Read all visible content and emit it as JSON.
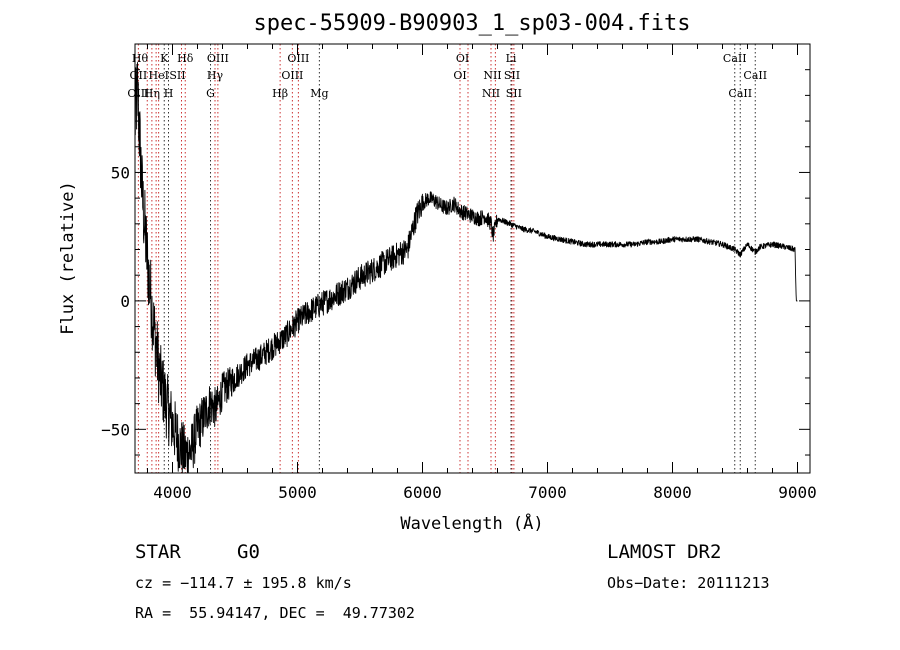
{
  "chart_data": {
    "type": "line",
    "title": "spec-55909-B90903_1_sp03-004.fits",
    "xlabel": "Wavelength (Å)",
    "ylabel": "Flux (relative)",
    "xlim": [
      3700,
      9100
    ],
    "ylim": [
      -67,
      100
    ],
    "xticks": [
      4000,
      5000,
      6000,
      7000,
      8000,
      9000
    ],
    "yticks": [
      -50,
      0,
      50
    ],
    "grid": false,
    "spectrum_envelope": {
      "x": [
        3700,
        3720,
        3760,
        3800,
        3850,
        3900,
        3950,
        4000,
        4050,
        4100,
        4150,
        4200,
        4250,
        4300,
        4350,
        4400,
        4500,
        4600,
        4700,
        4800,
        4900,
        5000,
        5100,
        5200,
        5300,
        5400,
        5500,
        5600,
        5700,
        5800,
        5880,
        5900,
        5950,
        6000,
        6050,
        6100,
        6150,
        6200,
        6250,
        6300,
        6350,
        6400,
        6450,
        6500,
        6550,
        6563,
        6600,
        6650,
        6700,
        6800,
        6900,
        7000,
        7100,
        7200,
        7300,
        7400,
        7500,
        7600,
        7700,
        7800,
        7900,
        8000,
        8100,
        8200,
        8300,
        8400,
        8498,
        8542,
        8600,
        8662,
        8700,
        8800,
        8900,
        8980,
        8990,
        9000
      ],
      "y": [
        70,
        82,
        40,
        15,
        -10,
        -30,
        -40,
        -48,
        -55,
        -60,
        -58,
        -50,
        -45,
        -40,
        -42,
        -35,
        -30,
        -25,
        -22,
        -18,
        -14,
        -8,
        -4,
        -1,
        2,
        5,
        9,
        12,
        15,
        18,
        20,
        24,
        33,
        38,
        40,
        39,
        37,
        36,
        38,
        35,
        34,
        33,
        32,
        33,
        30,
        25,
        32,
        31,
        30,
        28,
        27,
        25,
        24,
        23,
        22,
        22,
        22,
        22,
        22,
        23,
        23,
        24,
        24,
        24,
        23,
        22,
        20,
        18,
        22,
        19,
        21,
        22,
        21,
        20,
        0,
        0
      ]
    },
    "emission_lines": [
      {
        "name": "OII",
        "wavelength": 3727
      },
      {
        "name": "Hθ",
        "wavelength": 3798
      },
      {
        "name": "Hη",
        "wavelength": 3835
      },
      {
        "name": "OIII",
        "wavelength": 3869
      },
      {
        "name": "HeI",
        "wavelength": 3889
      },
      {
        "name": "SII",
        "wavelength": 4072
      },
      {
        "name": "Hδ",
        "wavelength": 4102
      },
      {
        "name": "Hγ",
        "wavelength": 4340
      },
      {
        "name": "OIII",
        "wavelength": 4363
      },
      {
        "name": "Hβ",
        "wavelength": 4861
      },
      {
        "name": "OIII",
        "wavelength": 4959
      },
      {
        "name": "OIII",
        "wavelength": 5007
      },
      {
        "name": "OI",
        "wavelength": 6300
      },
      {
        "name": "OI",
        "wavelength": 6364
      },
      {
        "name": "NII",
        "wavelength": 6548
      },
      {
        "name": "NII",
        "wavelength": 6583
      },
      {
        "name": "SII",
        "wavelength": 6716
      },
      {
        "name": "SII",
        "wavelength": 6731
      }
    ],
    "absorption_lines": [
      {
        "name": "K",
        "wavelength": 3934
      },
      {
        "name": "H",
        "wavelength": 3968
      },
      {
        "name": "G",
        "wavelength": 4304
      },
      {
        "name": "Mg",
        "wavelength": 5175
      },
      {
        "name": "Li",
        "wavelength": 6708
      },
      {
        "name": "CaII",
        "wavelength": 8498
      },
      {
        "name": "CaII",
        "wavelength": 8542
      },
      {
        "name": "CaII",
        "wavelength": 8662
      }
    ],
    "line_labels": [
      {
        "text": "Hθ",
        "wavelength": 3740,
        "row": 0
      },
      {
        "text": "K",
        "wavelength": 3934,
        "row": 0
      },
      {
        "text": "Hδ",
        "wavelength": 4102,
        "row": 0
      },
      {
        "text": "OIII",
        "wavelength": 4363,
        "row": 0
      },
      {
        "text": "OIII",
        "wavelength": 5007,
        "row": 0
      },
      {
        "text": "OI",
        "wavelength": 6320,
        "row": 0
      },
      {
        "text": "Li",
        "wavelength": 6708,
        "row": 0
      },
      {
        "text": "CaII",
        "wavelength": 8498,
        "row": 0
      },
      {
        "text": "OII",
        "wavelength": 3727,
        "row": 1
      },
      {
        "text": "HeI",
        "wavelength": 3890,
        "row": 1
      },
      {
        "text": "SII",
        "wavelength": 4040,
        "row": 1
      },
      {
        "text": "Hγ",
        "wavelength": 4340,
        "row": 1
      },
      {
        "text": "OIII",
        "wavelength": 4959,
        "row": 1
      },
      {
        "text": "OI",
        "wavelength": 6300,
        "row": 1
      },
      {
        "text": "NII",
        "wavelength": 6560,
        "row": 1
      },
      {
        "text": "SII",
        "wavelength": 6716,
        "row": 1
      },
      {
        "text": "CaII",
        "wavelength": 8662,
        "row": 1
      },
      {
        "text": "OIII",
        "wavelength": 3727,
        "row": 2
      },
      {
        "text": "Hη",
        "wavelength": 3835,
        "row": 2
      },
      {
        "text": "H",
        "wavelength": 3968,
        "row": 2
      },
      {
        "text": "G",
        "wavelength": 4304,
        "row": 2
      },
      {
        "text": "Hβ",
        "wavelength": 4861,
        "row": 2
      },
      {
        "text": "Mg",
        "wavelength": 5175,
        "row": 2
      },
      {
        "text": "NII",
        "wavelength": 6548,
        "row": 2
      },
      {
        "text": "SII",
        "wavelength": 6731,
        "row": 2
      },
      {
        "text": "CaII",
        "wavelength": 8542,
        "row": 2
      }
    ],
    "colors": {
      "spectrum": "#000000",
      "emission_line": "#cc3333",
      "absorption_line": "#333333"
    }
  },
  "info": {
    "object_class": "STAR",
    "subclass": "G0",
    "survey": "LAMOST DR2",
    "cz_text": "cz = −114.7 ± 195.8 km/s",
    "obs_date_text": "Obs−Date: 20111213",
    "coords_text": "RA =  55.94147, DEC =  49.77302"
  }
}
